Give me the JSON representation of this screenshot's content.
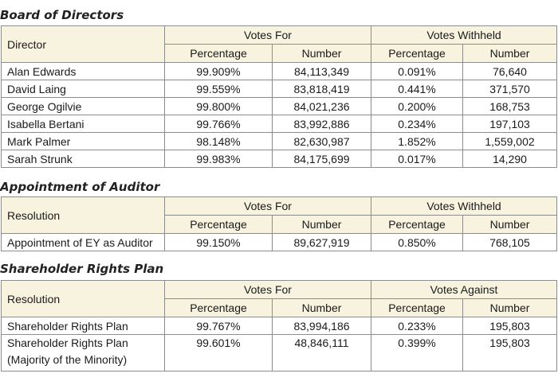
{
  "board": {
    "heading": "Board of Directors",
    "first_col": "Director",
    "group1": "Votes For",
    "group2": "Votes Withheld",
    "sub": [
      "Percentage",
      "Number",
      "Percentage",
      "Number"
    ],
    "rows": [
      [
        "Alan Edwards",
        "99.909%",
        "84,113,349",
        "0.091%",
        "76,640"
      ],
      [
        "David Laing",
        "99.559%",
        "83,818,419",
        "0.441%",
        "371,570"
      ],
      [
        "George Ogilvie",
        "99.800%",
        "84,021,236",
        "0.200%",
        "168,753"
      ],
      [
        "Isabella Bertani",
        "99.766%",
        "83,992,886",
        "0.234%",
        "197,103"
      ],
      [
        "Mark Palmer",
        "98.148%",
        "82,630,987",
        "1.852%",
        "1,559,002"
      ],
      [
        "Sarah Strunk",
        "99.983%",
        "84,175,699",
        "0.017%",
        "14,290"
      ]
    ]
  },
  "auditor": {
    "heading": "Appointment of Auditor",
    "first_col": "Resolution",
    "group1": "Votes For",
    "group2": "Votes Withheld",
    "sub": [
      "Percentage",
      "Number",
      "Percentage",
      "Number"
    ],
    "rows": [
      [
        "Appointment of EY as Auditor",
        "99.150%",
        "89,627,919",
        "0.850%",
        "768,105"
      ]
    ]
  },
  "rights": {
    "heading": "Shareholder Rights Plan",
    "first_col": "Resolution",
    "group1": "Votes For",
    "group2": "Votes Against",
    "sub": [
      "Percentage",
      "Number",
      "Percentage",
      "Number"
    ],
    "row1": [
      "Shareholder Rights Plan",
      "99.767%",
      "83,994,186",
      "0.233%",
      "195,803"
    ],
    "row2": {
      "label_line1": "Shareholder Rights Plan",
      "label_line2": "(Majority of the Minority)",
      "values": [
        "99.601%",
        "48,846,111",
        "0.399%",
        "195,803"
      ]
    }
  }
}
